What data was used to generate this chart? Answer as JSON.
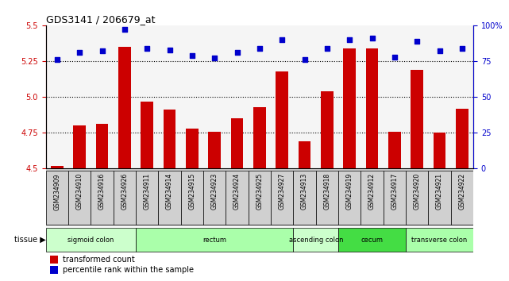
{
  "title": "GDS3141 / 206679_at",
  "samples": [
    "GSM234909",
    "GSM234910",
    "GSM234916",
    "GSM234926",
    "GSM234911",
    "GSM234914",
    "GSM234915",
    "GSM234923",
    "GSM234924",
    "GSM234925",
    "GSM234927",
    "GSM234913",
    "GSM234918",
    "GSM234919",
    "GSM234912",
    "GSM234917",
    "GSM234920",
    "GSM234921",
    "GSM234922"
  ],
  "bar_values": [
    4.52,
    4.8,
    4.81,
    5.35,
    4.97,
    4.91,
    4.78,
    4.76,
    4.85,
    4.93,
    5.18,
    4.69,
    5.04,
    5.34,
    5.34,
    4.76,
    5.19,
    4.75,
    4.92
  ],
  "dot_values": [
    76,
    81,
    82,
    97,
    84,
    83,
    79,
    77,
    81,
    84,
    90,
    76,
    84,
    90,
    91,
    78,
    89,
    82,
    84
  ],
  "tissues": [
    {
      "label": "sigmoid colon",
      "start": 0,
      "end": 4,
      "color": "#ccffcc"
    },
    {
      "label": "rectum",
      "start": 4,
      "end": 11,
      "color": "#aaffaa"
    },
    {
      "label": "ascending colon",
      "start": 11,
      "end": 13,
      "color": "#ccffcc"
    },
    {
      "label": "cecum",
      "start": 13,
      "end": 16,
      "color": "#44dd44"
    },
    {
      "label": "transverse colon",
      "start": 16,
      "end": 19,
      "color": "#aaffaa"
    }
  ],
  "bar_color": "#cc0000",
  "dot_color": "#0000cc",
  "ylim_left": [
    4.5,
    5.5
  ],
  "ylim_right": [
    0,
    100
  ],
  "yticks_left": [
    4.5,
    4.75,
    5.0,
    5.25,
    5.5
  ],
  "yticks_right": [
    0,
    25,
    50,
    75,
    100
  ],
  "ytick_labels_right": [
    "0",
    "25",
    "50",
    "75",
    "100%"
  ],
  "hlines": [
    4.75,
    5.0,
    5.25
  ],
  "chart_bg": "#f5f5f5",
  "background_color": "#ffffff",
  "xticklabel_bg": "#d0d0d0"
}
